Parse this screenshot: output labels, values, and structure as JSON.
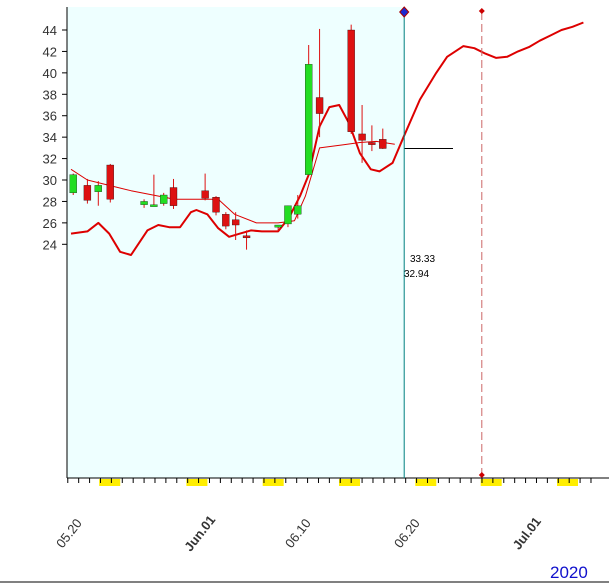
{
  "chart_data": {
    "type": "candlestick",
    "year": "2020",
    "ylim": [
      23,
      45
    ],
    "y_ticks": [
      24,
      26,
      28,
      30,
      32,
      34,
      36,
      38,
      40,
      42,
      44
    ],
    "x_tick_labels": [
      {
        "label": "05.20",
        "day": 0,
        "bold": false
      },
      {
        "label": "Jun.01",
        "day": 12,
        "bold": true
      },
      {
        "label": "06.10",
        "day": 21,
        "bold": false
      },
      {
        "label": "06.20",
        "day": 31,
        "bold": false
      },
      {
        "label": "Jul.01",
        "day": 42,
        "bold": true
      }
    ],
    "highlight_days": [
      3,
      11,
      18,
      25,
      32,
      38,
      45,
      51
    ],
    "last_price_day": 30,
    "forecast_divider_day": 37,
    "value_labels": [
      "33.33",
      "32.94"
    ],
    "colors": {
      "up": "#22dd22",
      "down": "#dd1111",
      "line": "#dd0000",
      "shade": "#eeffff",
      "divider": "#008080",
      "highlight": "#ffee00"
    },
    "candles": [
      {
        "day": -0.3,
        "open": 28.8,
        "high": 30.6,
        "low": 28.6,
        "close": 30.5
      },
      {
        "day": 1.0,
        "open": 29.5,
        "high": 30.1,
        "low": 27.8,
        "close": 28.1
      },
      {
        "day": 2.0,
        "open": 28.9,
        "high": 29.9,
        "low": 27.6,
        "close": 29.5
      },
      {
        "day": 3.1,
        "open": 31.4,
        "high": 31.5,
        "low": 27.9,
        "close": 28.2
      },
      {
        "day": 6.2,
        "open": 27.7,
        "high": 28.2,
        "low": 27.4,
        "close": 28.0
      },
      {
        "day": 7.1,
        "open": 27.7,
        "high": 30.5,
        "low": 27.6,
        "close": 27.7
      },
      {
        "day": 8.0,
        "open": 27.8,
        "high": 28.8,
        "low": 27.6,
        "close": 28.6
      },
      {
        "day": 8.9,
        "open": 29.3,
        "high": 30.1,
        "low": 27.3,
        "close": 27.6
      },
      {
        "day": 11.8,
        "open": 29.0,
        "high": 30.6,
        "low": 28.1,
        "close": 28.3
      },
      {
        "day": 12.8,
        "open": 28.4,
        "high": 28.5,
        "low": 26.7,
        "close": 27.0
      },
      {
        "day": 13.7,
        "open": 26.8,
        "high": 27.0,
        "low": 25.4,
        "close": 25.7
      },
      {
        "day": 14.6,
        "open": 26.3,
        "high": 27.0,
        "low": 24.4,
        "close": 25.8
      },
      {
        "day": 15.6,
        "open": 24.8,
        "high": 25.3,
        "low": 23.5,
        "close": 24.6
      },
      {
        "day": 18.5,
        "open": 25.6,
        "high": 25.8,
        "low": 25.2,
        "close": 25.8
      },
      {
        "day": 19.4,
        "open": 25.9,
        "high": 27.6,
        "low": 25.6,
        "close": 27.6
      },
      {
        "day": 20.3,
        "open": 26.8,
        "high": 28.6,
        "low": 26.4,
        "close": 27.6
      },
      {
        "day": 21.3,
        "open": 30.5,
        "high": 42.6,
        "low": 30.5,
        "close": 40.8
      },
      {
        "day": 22.3,
        "open": 37.7,
        "high": 44.1,
        "low": 34.0,
        "close": 36.2
      },
      {
        "day": 25.2,
        "open": 44.0,
        "high": 44.5,
        "low": 34.3,
        "close": 34.5
      },
      {
        "day": 26.2,
        "open": 34.3,
        "high": 37.0,
        "low": 31.6,
        "close": 33.7
      },
      {
        "day": 27.1,
        "open": 33.5,
        "high": 35.1,
        "low": 32.7,
        "close": 33.3
      },
      {
        "day": 28.1,
        "open": 33.8,
        "high": 34.8,
        "low": 32.9,
        "close": 32.94
      }
    ],
    "series": [
      {
        "style": "thin",
        "points": [
          [
            -0.5,
            31.0
          ],
          [
            1.0,
            30.0
          ],
          [
            3.0,
            29.5
          ],
          [
            5.0,
            29.0
          ],
          [
            7.0,
            28.6
          ],
          [
            9.0,
            28.2
          ],
          [
            11.0,
            28.2
          ],
          [
            13.0,
            28.2
          ],
          [
            14.5,
            26.8
          ],
          [
            16.5,
            26.0
          ],
          [
            18.5,
            26.0
          ],
          [
            20.0,
            26.2
          ],
          [
            21.0,
            28.5
          ],
          [
            22.3,
            33.0
          ],
          [
            24.5,
            33.3
          ],
          [
            26.0,
            33.5
          ],
          [
            27.5,
            33.6
          ],
          [
            29.2,
            33.33
          ]
        ]
      },
      {
        "style": "thick",
        "points": [
          [
            -0.5,
            25.0
          ],
          [
            1.0,
            25.2
          ],
          [
            2.0,
            26.0
          ],
          [
            3.0,
            25.0
          ],
          [
            4.0,
            23.3
          ],
          [
            5.0,
            23.0
          ],
          [
            6.5,
            25.3
          ],
          [
            7.5,
            25.8
          ],
          [
            8.5,
            25.6
          ],
          [
            9.5,
            25.6
          ],
          [
            10.5,
            27.0
          ],
          [
            11.0,
            27.2
          ],
          [
            12.0,
            26.8
          ],
          [
            13.0,
            25.5
          ],
          [
            14.0,
            24.7
          ],
          [
            15.0,
            25.0
          ],
          [
            16.0,
            25.3
          ],
          [
            17.0,
            25.2
          ],
          [
            18.5,
            25.2
          ],
          [
            19.5,
            26.5
          ],
          [
            20.5,
            28.5
          ],
          [
            21.3,
            30.5
          ],
          [
            22.3,
            35.0
          ],
          [
            23.2,
            36.8
          ],
          [
            24.1,
            37.0
          ],
          [
            25.0,
            35.3
          ],
          [
            26.0,
            32.5
          ],
          [
            27.0,
            31.0
          ],
          [
            27.8,
            30.8
          ],
          [
            29.0,
            31.6
          ],
          [
            30.0,
            34.0
          ],
          [
            31.5,
            37.5
          ],
          [
            33.0,
            40.0
          ],
          [
            34.0,
            41.5
          ],
          [
            35.5,
            42.5
          ],
          [
            36.5,
            42.3
          ],
          [
            37.5,
            41.8
          ],
          [
            38.5,
            41.4
          ],
          [
            39.5,
            41.5
          ],
          [
            40.5,
            42.0
          ],
          [
            41.5,
            42.4
          ],
          [
            42.5,
            43.0
          ],
          [
            43.5,
            43.5
          ],
          [
            44.5,
            44.0
          ],
          [
            45.5,
            44.3
          ],
          [
            46.5,
            44.7
          ]
        ]
      }
    ]
  }
}
